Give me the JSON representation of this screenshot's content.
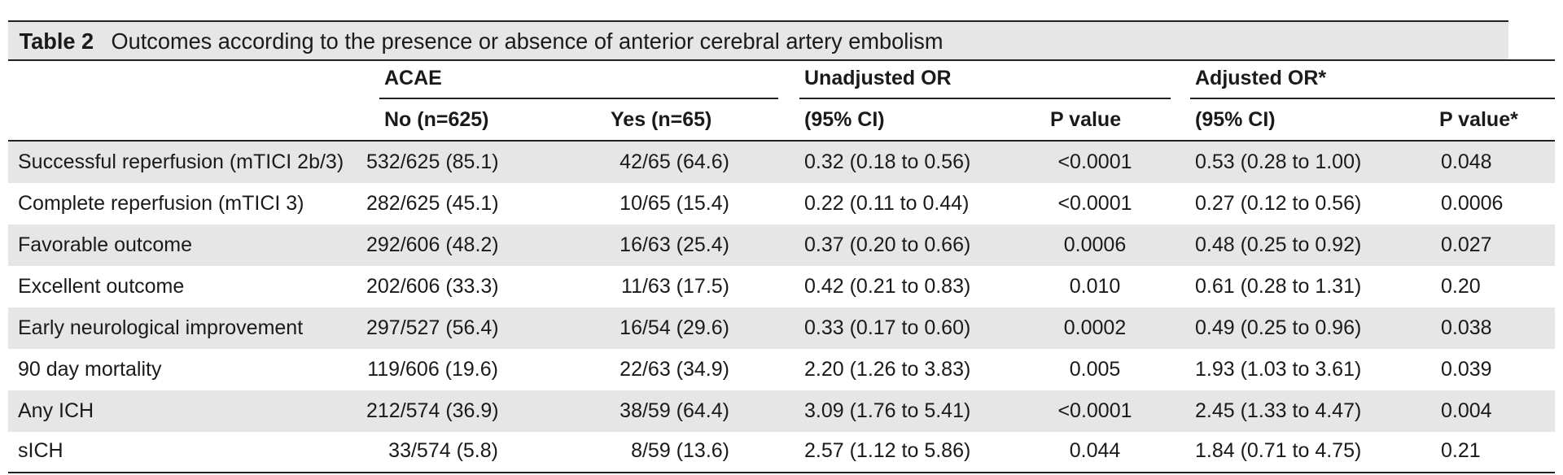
{
  "table": {
    "label": "Table 2",
    "title": "Outcomes according to the presence or absence of anterior cerebral artery embolism",
    "groups": {
      "acae": "ACAE",
      "unadjusted": "Unadjusted OR",
      "adjusted": "Adjusted OR*"
    },
    "columns": {
      "no": "No (n=625)",
      "yes": "Yes (n=65)",
      "unadj_ci": "(95% CI)",
      "unadj_p": "P value",
      "adj_ci": "(95% CI)",
      "adj_p": "P value*"
    },
    "rows": [
      {
        "outcome": "Successful reperfusion (mTICI 2b/3)",
        "no": "532/625 (85.1)",
        "yes": "42/65 (64.6)",
        "unadj_or": "0.32 (0.18 to 0.56)",
        "unadj_p": "<0.0001",
        "adj_or": "0.53 (0.28 to 1.00)",
        "adj_p": "0.048"
      },
      {
        "outcome": "Complete reperfusion (mTICI 3)",
        "no": "282/625 (45.1)",
        "yes": "10/65 (15.4)",
        "unadj_or": "0.22 (0.11 to 0.44)",
        "unadj_p": "<0.0001",
        "adj_or": "0.27 (0.12 to 0.56)",
        "adj_p": "0.0006"
      },
      {
        "outcome": "Favorable outcome",
        "no": "292/606 (48.2)",
        "yes": "16/63 (25.4)",
        "unadj_or": "0.37 (0.20 to 0.66)",
        "unadj_p": "0.0006",
        "adj_or": "0.48 (0.25 to 0.92)",
        "adj_p": "0.027"
      },
      {
        "outcome": "Excellent outcome",
        "no": "202/606 (33.3)",
        "yes": "11/63 (17.5)",
        "unadj_or": "0.42 (0.21 to 0.83)",
        "unadj_p": "0.010",
        "adj_or": "0.61 (0.28 to 1.31)",
        "adj_p": "0.20"
      },
      {
        "outcome": "Early neurological improvement",
        "no": "297/527 (56.4)",
        "yes": "16/54 (29.6)",
        "unadj_or": "0.33 (0.17 to 0.60)",
        "unadj_p": "0.0002",
        "adj_or": "0.49 (0.25 to 0.96)",
        "adj_p": "0.038"
      },
      {
        "outcome": "90 day mortality",
        "no": "119/606 (19.6)",
        "yes": "22/63 (34.9)",
        "unadj_or": "2.20 (1.26 to 3.83)",
        "unadj_p": "0.005",
        "adj_or": "1.93 (1.03 to 3.61)",
        "adj_p": "0.039"
      },
      {
        "outcome": "Any ICH",
        "no": "212/574 (36.9)",
        "yes": "38/59 (64.4)",
        "unadj_or": "3.09 (1.76 to 5.41)",
        "unadj_p": "<0.0001",
        "adj_or": "2.45 (1.33 to 4.47)",
        "adj_p": "0.004"
      },
      {
        "outcome": "sICH",
        "no": "33/574 (5.8)",
        "yes": "8/59 (13.6)",
        "unadj_or": "2.57 (1.12 to 5.86)",
        "unadj_p": "0.044",
        "adj_or": "1.84 (0.71 to 4.75)",
        "adj_p": "0.21"
      }
    ]
  }
}
